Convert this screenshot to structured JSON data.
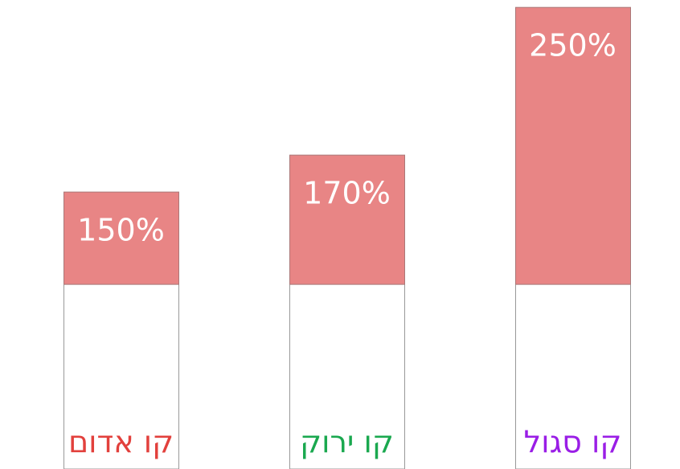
{
  "chart_data": {
    "type": "bar",
    "categories": [
      "קו אדום",
      "קו ירוק",
      "קו סגול"
    ],
    "category_colors": [
      "#e2403c",
      "#1aa84f",
      "#9a1ee6"
    ],
    "values": [
      150,
      170,
      250
    ],
    "value_labels": [
      "150%",
      "170%",
      "250%"
    ],
    "color": "#e88585",
    "base_color": "#ffffff",
    "threshold": 100,
    "ylim": [
      0,
      254
    ]
  }
}
